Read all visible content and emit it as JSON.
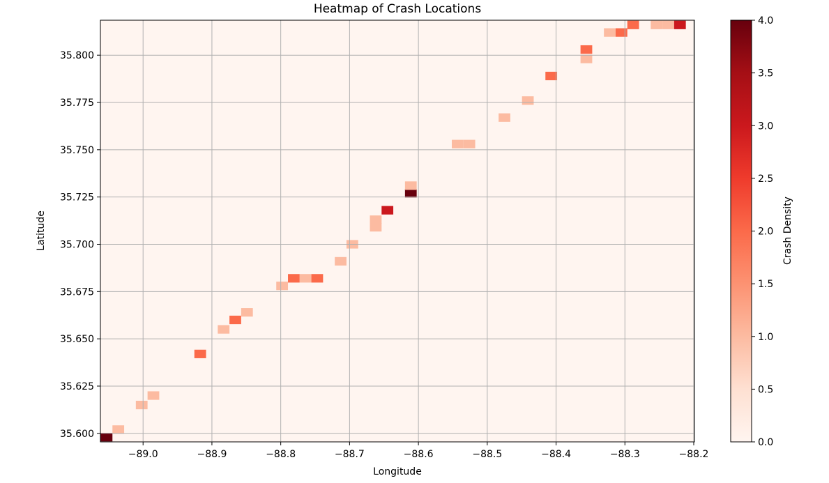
{
  "chart_data": {
    "type": "heatmap",
    "title": "Heatmap of Crash Locations",
    "xlabel": "Longitude",
    "ylabel": "Latitude",
    "colorbar_label": "Crash Density",
    "colormap": "Reds",
    "xlim": [
      -89.062,
      -88.199
    ],
    "ylim": [
      35.5955,
      35.8185
    ],
    "vlim": [
      0,
      4
    ],
    "bin_width": 0.017,
    "bin_height": 0.0045,
    "grid": true,
    "background_color": "#fff5f0",
    "x_ticks": [
      -89.0,
      -88.9,
      -88.8,
      -88.7,
      -88.6,
      -88.5,
      -88.4,
      -88.3,
      -88.2
    ],
    "x_tick_labels": [
      "−89.0",
      "−88.9",
      "−88.8",
      "−88.7",
      "−88.6",
      "−88.5",
      "−88.4",
      "−88.3",
      "−88.2"
    ],
    "y_ticks": [
      35.6,
      35.625,
      35.65,
      35.675,
      35.7,
      35.725,
      35.75,
      35.775,
      35.8
    ],
    "y_tick_labels": [
      "35.600",
      "35.625",
      "35.650",
      "35.675",
      "35.700",
      "35.725",
      "35.750",
      "35.775",
      "35.800"
    ],
    "colorbar_ticks": [
      0,
      0.5,
      1.0,
      1.5,
      2.0,
      2.5,
      3.0,
      3.5,
      4.0
    ],
    "colorbar_tick_labels": [
      "0.0",
      "0.5",
      "1.0",
      "1.5",
      "2.0",
      "2.5",
      "3.0",
      "3.5",
      "4.0"
    ],
    "cells": [
      {
        "x": -89.053,
        "y": 35.598,
        "value": 4
      },
      {
        "x": -89.036,
        "y": 35.602,
        "value": 1
      },
      {
        "x": -89.002,
        "y": 35.615,
        "value": 1
      },
      {
        "x": -88.985,
        "y": 35.62,
        "value": 1
      },
      {
        "x": -88.917,
        "y": 35.642,
        "value": 2
      },
      {
        "x": -88.883,
        "y": 35.655,
        "value": 1
      },
      {
        "x": -88.866,
        "y": 35.66,
        "value": 2
      },
      {
        "x": -88.849,
        "y": 35.664,
        "value": 1
      },
      {
        "x": -88.798,
        "y": 35.678,
        "value": 1
      },
      {
        "x": -88.781,
        "y": 35.682,
        "value": 2
      },
      {
        "x": -88.764,
        "y": 35.682,
        "value": 1
      },
      {
        "x": -88.747,
        "y": 35.682,
        "value": 2
      },
      {
        "x": -88.713,
        "y": 35.691,
        "value": 1
      },
      {
        "x": -88.696,
        "y": 35.7,
        "value": 1
      },
      {
        "x": -88.662,
        "y": 35.709,
        "value": 1
      },
      {
        "x": -88.662,
        "y": 35.713,
        "value": 1
      },
      {
        "x": -88.645,
        "y": 35.718,
        "value": 3
      },
      {
        "x": -88.611,
        "y": 35.727,
        "value": 4
      },
      {
        "x": -88.611,
        "y": 35.731,
        "value": 1
      },
      {
        "x": -88.543,
        "y": 35.753,
        "value": 1
      },
      {
        "x": -88.526,
        "y": 35.753,
        "value": 1
      },
      {
        "x": -88.475,
        "y": 35.767,
        "value": 1
      },
      {
        "x": -88.441,
        "y": 35.776,
        "value": 1
      },
      {
        "x": -88.407,
        "y": 35.789,
        "value": 2
      },
      {
        "x": -88.356,
        "y": 35.798,
        "value": 1
      },
      {
        "x": -88.356,
        "y": 35.803,
        "value": 2
      },
      {
        "x": -88.322,
        "y": 35.812,
        "value": 1
      },
      {
        "x": -88.305,
        "y": 35.812,
        "value": 2
      },
      {
        "x": -88.288,
        "y": 35.816,
        "value": 2
      },
      {
        "x": -88.254,
        "y": 35.816,
        "value": 1
      },
      {
        "x": -88.237,
        "y": 35.816,
        "value": 1
      },
      {
        "x": -88.22,
        "y": 35.816,
        "value": 3
      }
    ]
  }
}
